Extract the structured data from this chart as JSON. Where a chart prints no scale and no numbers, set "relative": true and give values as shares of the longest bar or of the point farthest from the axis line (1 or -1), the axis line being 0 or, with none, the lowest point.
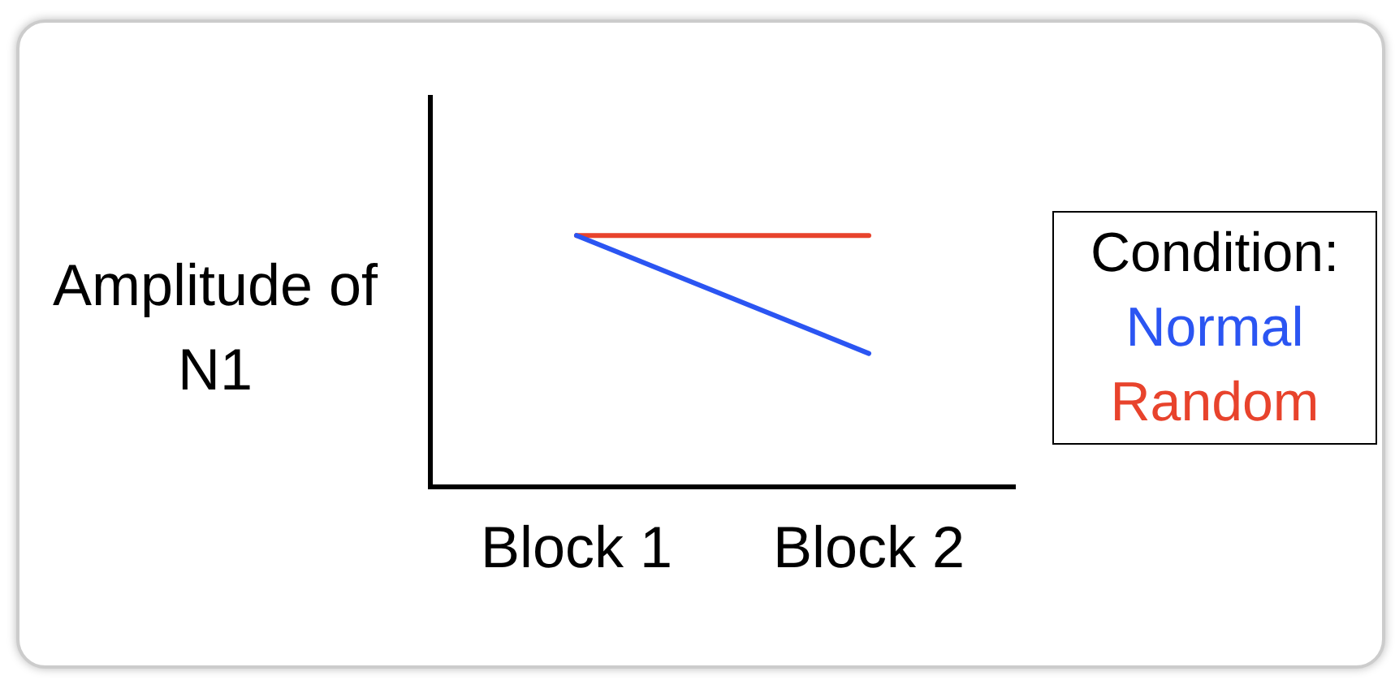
{
  "chart_data": {
    "type": "line",
    "relative": true,
    "ylabel": "Amplitude of N1",
    "legend_title": "Condition:",
    "categories": [
      "Block 1",
      "Block 2"
    ],
    "series": [
      {
        "name": "Normal",
        "color": "#2b55f2",
        "values": [
          1,
          0.53
        ]
      },
      {
        "name": "Random",
        "color": "#e8432c",
        "values": [
          1,
          1
        ]
      }
    ],
    "legend": "right",
    "grid": false,
    "tick_labels": "x",
    "marker": "none",
    "line_style": "solid"
  }
}
